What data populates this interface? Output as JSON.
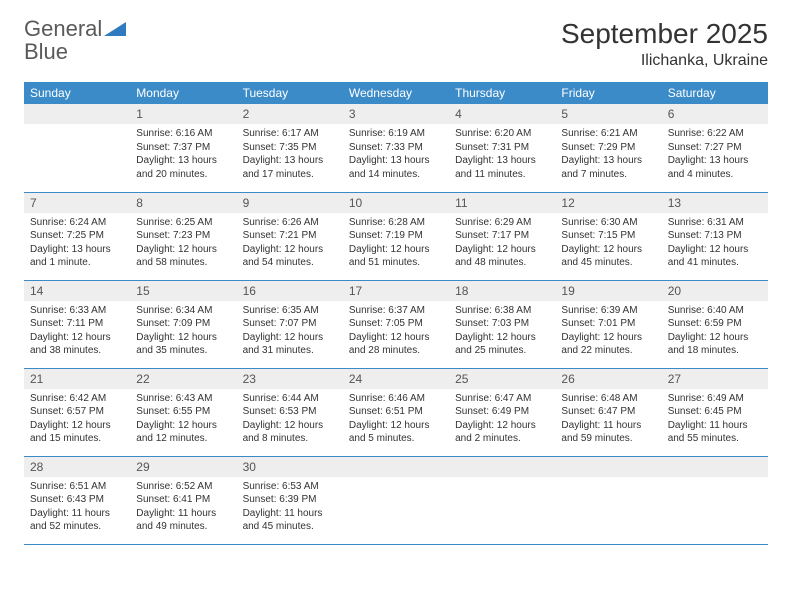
{
  "brand": {
    "word1": "General",
    "word2": "Blue"
  },
  "title": "September 2025",
  "location": "Ilichanka, Ukraine",
  "colors": {
    "header_bg": "#3b8bc9",
    "header_fg": "#ffffff",
    "daynum_bg": "#eeeeee",
    "rule": "#3b8bc9",
    "brand_blue": "#2f7bbf",
    "text": "#333333"
  },
  "dayNames": [
    "Sunday",
    "Monday",
    "Tuesday",
    "Wednesday",
    "Thursday",
    "Friday",
    "Saturday"
  ],
  "firstDayOffset": 1,
  "daysInMonth": 30,
  "days": {
    "1": {
      "sunrise": "6:16 AM",
      "sunset": "7:37 PM",
      "daylight": "13 hours and 20 minutes."
    },
    "2": {
      "sunrise": "6:17 AM",
      "sunset": "7:35 PM",
      "daylight": "13 hours and 17 minutes."
    },
    "3": {
      "sunrise": "6:19 AM",
      "sunset": "7:33 PM",
      "daylight": "13 hours and 14 minutes."
    },
    "4": {
      "sunrise": "6:20 AM",
      "sunset": "7:31 PM",
      "daylight": "13 hours and 11 minutes."
    },
    "5": {
      "sunrise": "6:21 AM",
      "sunset": "7:29 PM",
      "daylight": "13 hours and 7 minutes."
    },
    "6": {
      "sunrise": "6:22 AM",
      "sunset": "7:27 PM",
      "daylight": "13 hours and 4 minutes."
    },
    "7": {
      "sunrise": "6:24 AM",
      "sunset": "7:25 PM",
      "daylight": "13 hours and 1 minute."
    },
    "8": {
      "sunrise": "6:25 AM",
      "sunset": "7:23 PM",
      "daylight": "12 hours and 58 minutes."
    },
    "9": {
      "sunrise": "6:26 AM",
      "sunset": "7:21 PM",
      "daylight": "12 hours and 54 minutes."
    },
    "10": {
      "sunrise": "6:28 AM",
      "sunset": "7:19 PM",
      "daylight": "12 hours and 51 minutes."
    },
    "11": {
      "sunrise": "6:29 AM",
      "sunset": "7:17 PM",
      "daylight": "12 hours and 48 minutes."
    },
    "12": {
      "sunrise": "6:30 AM",
      "sunset": "7:15 PM",
      "daylight": "12 hours and 45 minutes."
    },
    "13": {
      "sunrise": "6:31 AM",
      "sunset": "7:13 PM",
      "daylight": "12 hours and 41 minutes."
    },
    "14": {
      "sunrise": "6:33 AM",
      "sunset": "7:11 PM",
      "daylight": "12 hours and 38 minutes."
    },
    "15": {
      "sunrise": "6:34 AM",
      "sunset": "7:09 PM",
      "daylight": "12 hours and 35 minutes."
    },
    "16": {
      "sunrise": "6:35 AM",
      "sunset": "7:07 PM",
      "daylight": "12 hours and 31 minutes."
    },
    "17": {
      "sunrise": "6:37 AM",
      "sunset": "7:05 PM",
      "daylight": "12 hours and 28 minutes."
    },
    "18": {
      "sunrise": "6:38 AM",
      "sunset": "7:03 PM",
      "daylight": "12 hours and 25 minutes."
    },
    "19": {
      "sunrise": "6:39 AM",
      "sunset": "7:01 PM",
      "daylight": "12 hours and 22 minutes."
    },
    "20": {
      "sunrise": "6:40 AM",
      "sunset": "6:59 PM",
      "daylight": "12 hours and 18 minutes."
    },
    "21": {
      "sunrise": "6:42 AM",
      "sunset": "6:57 PM",
      "daylight": "12 hours and 15 minutes."
    },
    "22": {
      "sunrise": "6:43 AM",
      "sunset": "6:55 PM",
      "daylight": "12 hours and 12 minutes."
    },
    "23": {
      "sunrise": "6:44 AM",
      "sunset": "6:53 PM",
      "daylight": "12 hours and 8 minutes."
    },
    "24": {
      "sunrise": "6:46 AM",
      "sunset": "6:51 PM",
      "daylight": "12 hours and 5 minutes."
    },
    "25": {
      "sunrise": "6:47 AM",
      "sunset": "6:49 PM",
      "daylight": "12 hours and 2 minutes."
    },
    "26": {
      "sunrise": "6:48 AM",
      "sunset": "6:47 PM",
      "daylight": "11 hours and 59 minutes."
    },
    "27": {
      "sunrise": "6:49 AM",
      "sunset": "6:45 PM",
      "daylight": "11 hours and 55 minutes."
    },
    "28": {
      "sunrise": "6:51 AM",
      "sunset": "6:43 PM",
      "daylight": "11 hours and 52 minutes."
    },
    "29": {
      "sunrise": "6:52 AM",
      "sunset": "6:41 PM",
      "daylight": "11 hours and 49 minutes."
    },
    "30": {
      "sunrise": "6:53 AM",
      "sunset": "6:39 PM",
      "daylight": "11 hours and 45 minutes."
    }
  },
  "labels": {
    "sunrise": "Sunrise:",
    "sunset": "Sunset:",
    "daylight": "Daylight:"
  }
}
